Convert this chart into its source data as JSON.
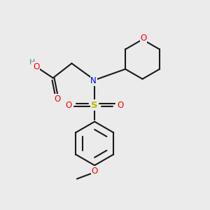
{
  "bg_color": "#ebebeb",
  "bond_color": "#1a1a1a",
  "N_color": "#0000ff",
  "O_color": "#ff0000",
  "S_color": "#bbbb00",
  "H_color": "#4a8a8a",
  "lw": 1.5,
  "fs": 8.5,
  "fig_w": 3.0,
  "fig_h": 3.0,
  "xlim": [
    0,
    10
  ],
  "ylim": [
    0,
    10
  ]
}
